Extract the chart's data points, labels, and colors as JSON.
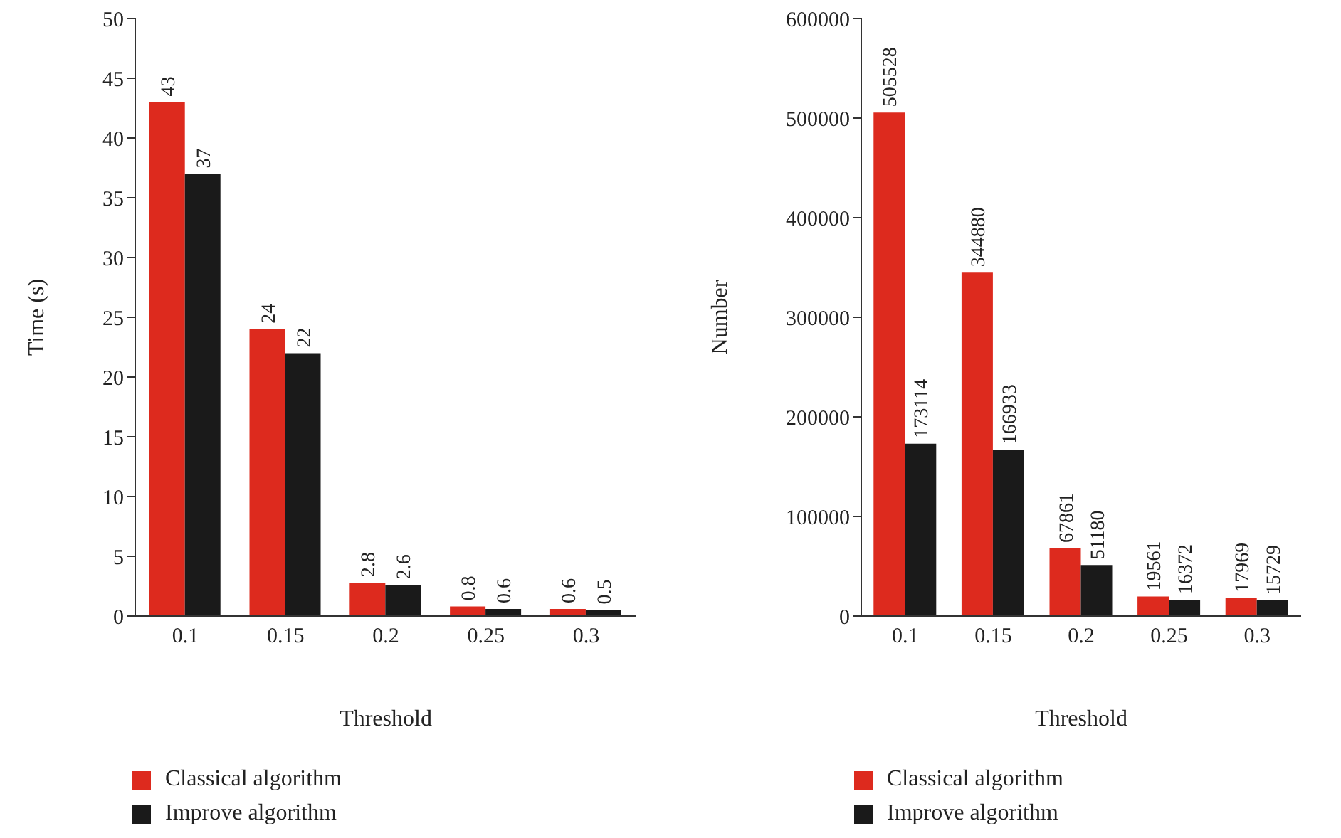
{
  "chart_data": [
    {
      "type": "bar",
      "xlabel": "Threshold",
      "ylabel": "Time (s)",
      "categories": [
        "0.1",
        "0.15",
        "0.2",
        "0.25",
        "0.3"
      ],
      "series": [
        {
          "name": "Classical algorithm",
          "color": "#dd2a1e",
          "values": [
            43,
            24,
            2.8,
            0.8,
            0.6
          ]
        },
        {
          "name": "Improve algorithm",
          "color": "#1a1a1a",
          "values": [
            37,
            22,
            2.6,
            0.6,
            0.5
          ]
        }
      ],
      "ylim": [
        0,
        50
      ],
      "yticks": [
        0,
        5,
        10,
        15,
        20,
        25,
        30,
        35,
        40,
        45,
        50
      ],
      "data_labels": true,
      "grid": false,
      "legend": "bottom"
    },
    {
      "type": "bar",
      "xlabel": "Threshold",
      "ylabel": "Number",
      "categories": [
        "0.1",
        "0.15",
        "0.2",
        "0.25",
        "0.3"
      ],
      "series": [
        {
          "name": "Classical algorithm",
          "color": "#dd2a1e",
          "values": [
            505528,
            344880,
            67861,
            19561,
            17969
          ]
        },
        {
          "name": "Improve algorithm",
          "color": "#1a1a1a",
          "values": [
            173114,
            166933,
            51180,
            16372,
            15729
          ]
        }
      ],
      "ylim": [
        0,
        600000
      ],
      "yticks": [
        0,
        100000,
        200000,
        300000,
        400000,
        500000,
        600000
      ],
      "data_labels": true,
      "grid": false,
      "legend": "bottom"
    }
  ]
}
